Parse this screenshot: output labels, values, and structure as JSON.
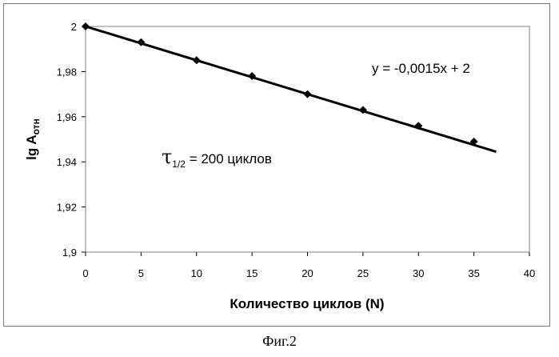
{
  "chart_data": {
    "type": "scatter",
    "title": "",
    "xlabel": "Количество циклов (N)",
    "ylabel_main": "lg A",
    "ylabel_sub": "отн",
    "xlim": [
      0,
      40
    ],
    "ylim": [
      1.9,
      2.0
    ],
    "x_ticks": [
      0,
      5,
      10,
      15,
      20,
      25,
      30,
      35,
      40
    ],
    "x_tick_labels": [
      "0",
      "5",
      "10",
      "15",
      "20",
      "25",
      "30",
      "35",
      "40"
    ],
    "y_ticks": [
      1.9,
      1.92,
      1.94,
      1.96,
      1.98,
      2.0
    ],
    "y_tick_labels": [
      "1,9",
      "1,92",
      "1,94",
      "1,96",
      "1,98",
      "2"
    ],
    "grid": false,
    "series": [
      {
        "x": [
          0,
          5,
          10,
          15,
          20,
          25,
          30,
          35
        ],
        "y": [
          2.0,
          1.993,
          1.985,
          1.978,
          1.97,
          1.963,
          1.956,
          1.949
        ],
        "marker": "diamond",
        "color": "#000000"
      }
    ],
    "trendline": {
      "slope": -0.0015,
      "intercept": 2,
      "x_range": [
        0,
        37
      ],
      "equation_label": "y = -0,0015x + 2"
    },
    "annotation": {
      "symbol": "τ",
      "subscript": "1/2",
      "text": " = 200 циклов"
    }
  },
  "caption": "Фиг.2"
}
